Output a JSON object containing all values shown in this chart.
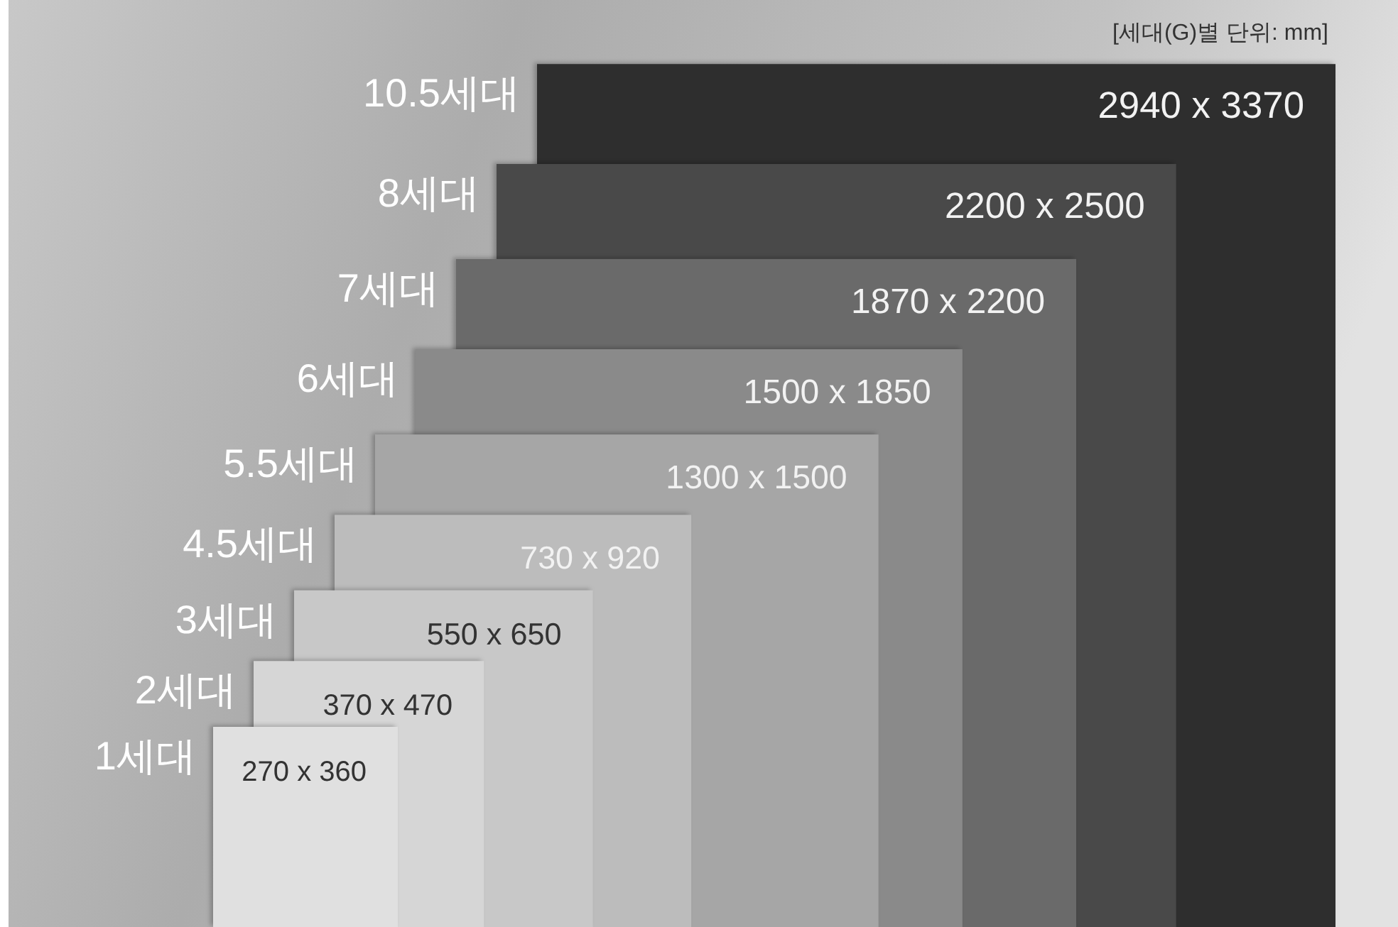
{
  "chart_data": {
    "type": "other",
    "categories": [
      "1세대",
      "2세대",
      "3세대",
      "4.5세대",
      "5.5세대",
      "6세대",
      "7세대",
      "8세대",
      "10.5세대"
    ],
    "values": [
      270,
      370,
      550,
      730,
      1300,
      1500,
      1870,
      2200,
      2940
    ],
    "value_labels": [
      "270 x 360",
      "370 x 470",
      "550 x 650",
      "730 x 920",
      "1300 x 1500",
      "1500 x 1850",
      "1870 x 2200",
      "2200 x 2500",
      "2940 x 3370"
    ],
    "colors": [
      "#e0e0e0",
      "#d6d6d6",
      "#c8c8c8",
      "#bcbcbc",
      "#a6a6a6",
      "#8a8a8a",
      "#6a6a6a",
      "#484848",
      "#2d2d2d"
    ],
    "annotations": [
      "[세대(G)별 단위: mm]"
    ]
  }
}
